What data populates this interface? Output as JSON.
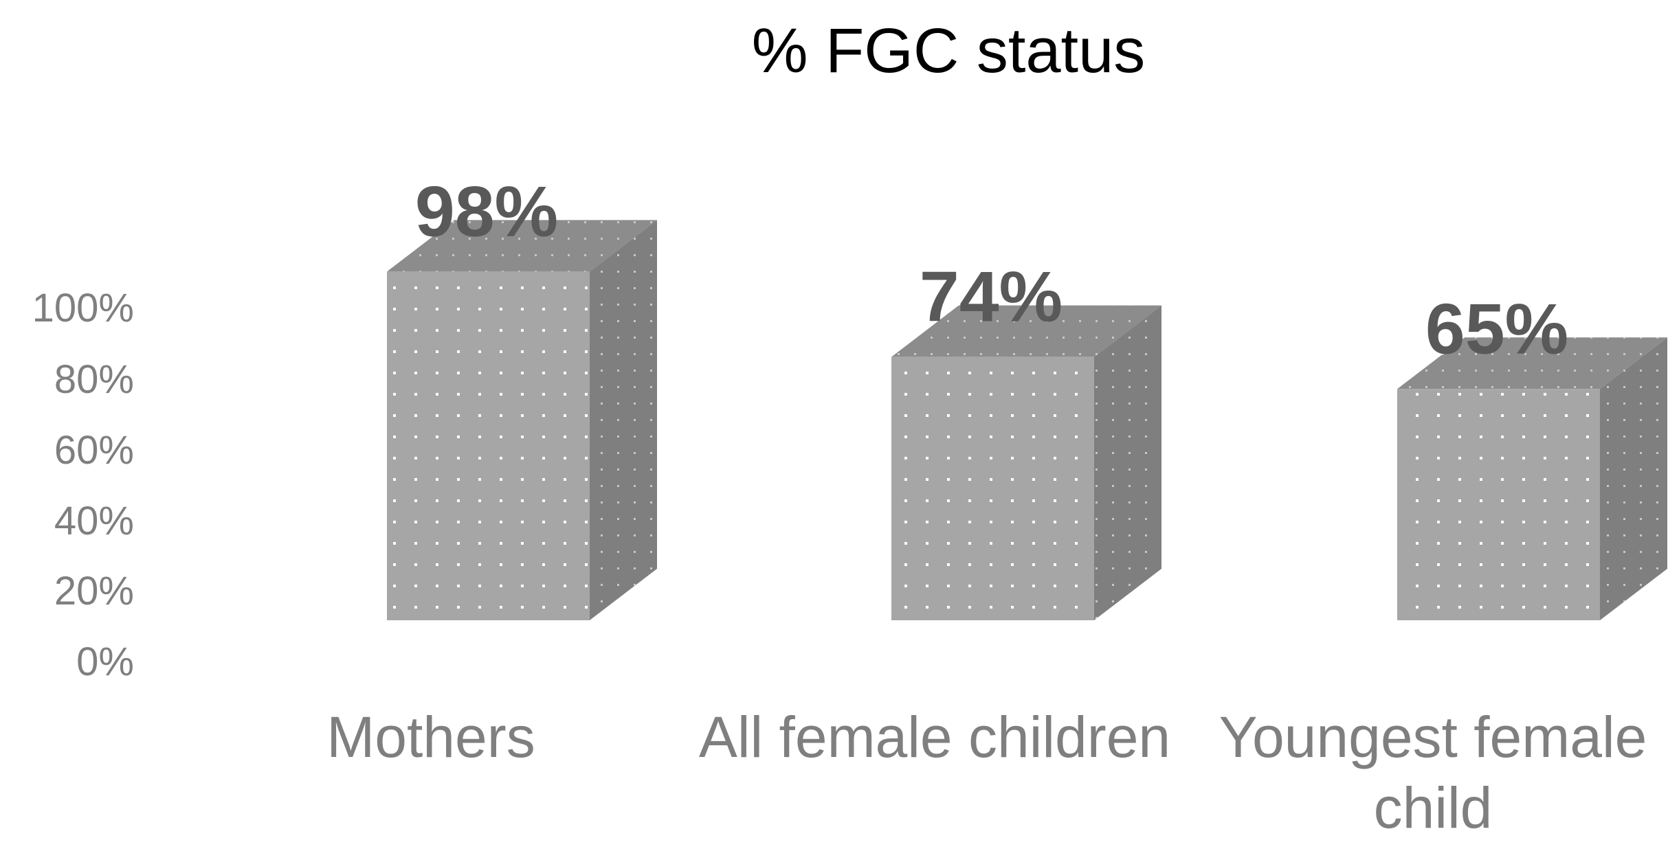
{
  "chart_data": {
    "type": "bar",
    "title": "% FGC status",
    "categories": [
      "Mothers",
      "All female children",
      "Youngest female child"
    ],
    "category_lines": [
      [
        "Mothers"
      ],
      [
        "All female children"
      ],
      [
        "Youngest female",
        "child"
      ]
    ],
    "values": [
      98,
      74,
      65
    ],
    "data_labels": [
      "98%",
      "74%",
      "65%"
    ],
    "yticks": [
      "0%",
      "20%",
      "40%",
      "60%",
      "80%",
      "100%"
    ],
    "ylim": [
      0,
      100
    ],
    "xlabel": "",
    "ylabel": "",
    "grid": false,
    "style": "3d-column",
    "colors": {
      "front": "#a6a6a6",
      "side": "#7f7f7f",
      "top": "#8c8c8c",
      "dots": "#ffffff",
      "axis_text": "#7f7f7f",
      "data_label": "#595959"
    }
  }
}
